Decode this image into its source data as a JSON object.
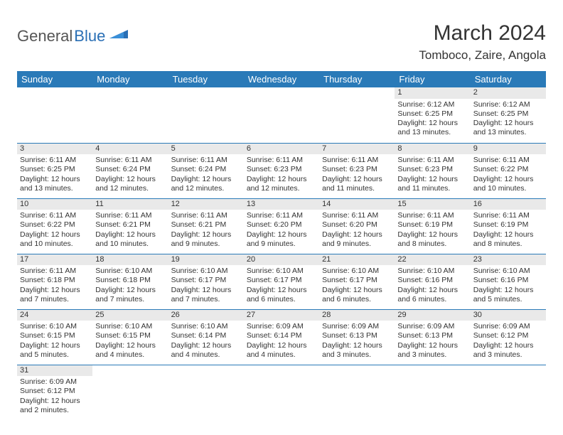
{
  "brand": {
    "part1": "General",
    "part2": "Blue"
  },
  "title": "March 2024",
  "location": "Tomboco, Zaire, Angola",
  "colors": {
    "header_bg": "#2a7ab8",
    "header_text": "#ffffff",
    "daynum_bg": "#e9e9e9",
    "text": "#333333",
    "rule": "#2a7ab8",
    "logo_gray": "#555555",
    "logo_blue": "#2a6fb5"
  },
  "weekdays": [
    "Sunday",
    "Monday",
    "Tuesday",
    "Wednesday",
    "Thursday",
    "Friday",
    "Saturday"
  ],
  "weeks": [
    [
      null,
      null,
      null,
      null,
      null,
      {
        "n": "1",
        "sr": "Sunrise: 6:12 AM",
        "ss": "Sunset: 6:25 PM",
        "d1": "Daylight: 12 hours",
        "d2": "and 13 minutes."
      },
      {
        "n": "2",
        "sr": "Sunrise: 6:12 AM",
        "ss": "Sunset: 6:25 PM",
        "d1": "Daylight: 12 hours",
        "d2": "and 13 minutes."
      }
    ],
    [
      {
        "n": "3",
        "sr": "Sunrise: 6:11 AM",
        "ss": "Sunset: 6:25 PM",
        "d1": "Daylight: 12 hours",
        "d2": "and 13 minutes."
      },
      {
        "n": "4",
        "sr": "Sunrise: 6:11 AM",
        "ss": "Sunset: 6:24 PM",
        "d1": "Daylight: 12 hours",
        "d2": "and 12 minutes."
      },
      {
        "n": "5",
        "sr": "Sunrise: 6:11 AM",
        "ss": "Sunset: 6:24 PM",
        "d1": "Daylight: 12 hours",
        "d2": "and 12 minutes."
      },
      {
        "n": "6",
        "sr": "Sunrise: 6:11 AM",
        "ss": "Sunset: 6:23 PM",
        "d1": "Daylight: 12 hours",
        "d2": "and 12 minutes."
      },
      {
        "n": "7",
        "sr": "Sunrise: 6:11 AM",
        "ss": "Sunset: 6:23 PM",
        "d1": "Daylight: 12 hours",
        "d2": "and 11 minutes."
      },
      {
        "n": "8",
        "sr": "Sunrise: 6:11 AM",
        "ss": "Sunset: 6:23 PM",
        "d1": "Daylight: 12 hours",
        "d2": "and 11 minutes."
      },
      {
        "n": "9",
        "sr": "Sunrise: 6:11 AM",
        "ss": "Sunset: 6:22 PM",
        "d1": "Daylight: 12 hours",
        "d2": "and 10 minutes."
      }
    ],
    [
      {
        "n": "10",
        "sr": "Sunrise: 6:11 AM",
        "ss": "Sunset: 6:22 PM",
        "d1": "Daylight: 12 hours",
        "d2": "and 10 minutes."
      },
      {
        "n": "11",
        "sr": "Sunrise: 6:11 AM",
        "ss": "Sunset: 6:21 PM",
        "d1": "Daylight: 12 hours",
        "d2": "and 10 minutes."
      },
      {
        "n": "12",
        "sr": "Sunrise: 6:11 AM",
        "ss": "Sunset: 6:21 PM",
        "d1": "Daylight: 12 hours",
        "d2": "and 9 minutes."
      },
      {
        "n": "13",
        "sr": "Sunrise: 6:11 AM",
        "ss": "Sunset: 6:20 PM",
        "d1": "Daylight: 12 hours",
        "d2": "and 9 minutes."
      },
      {
        "n": "14",
        "sr": "Sunrise: 6:11 AM",
        "ss": "Sunset: 6:20 PM",
        "d1": "Daylight: 12 hours",
        "d2": "and 9 minutes."
      },
      {
        "n": "15",
        "sr": "Sunrise: 6:11 AM",
        "ss": "Sunset: 6:19 PM",
        "d1": "Daylight: 12 hours",
        "d2": "and 8 minutes."
      },
      {
        "n": "16",
        "sr": "Sunrise: 6:11 AM",
        "ss": "Sunset: 6:19 PM",
        "d1": "Daylight: 12 hours",
        "d2": "and 8 minutes."
      }
    ],
    [
      {
        "n": "17",
        "sr": "Sunrise: 6:11 AM",
        "ss": "Sunset: 6:18 PM",
        "d1": "Daylight: 12 hours",
        "d2": "and 7 minutes."
      },
      {
        "n": "18",
        "sr": "Sunrise: 6:10 AM",
        "ss": "Sunset: 6:18 PM",
        "d1": "Daylight: 12 hours",
        "d2": "and 7 minutes."
      },
      {
        "n": "19",
        "sr": "Sunrise: 6:10 AM",
        "ss": "Sunset: 6:17 PM",
        "d1": "Daylight: 12 hours",
        "d2": "and 7 minutes."
      },
      {
        "n": "20",
        "sr": "Sunrise: 6:10 AM",
        "ss": "Sunset: 6:17 PM",
        "d1": "Daylight: 12 hours",
        "d2": "and 6 minutes."
      },
      {
        "n": "21",
        "sr": "Sunrise: 6:10 AM",
        "ss": "Sunset: 6:17 PM",
        "d1": "Daylight: 12 hours",
        "d2": "and 6 minutes."
      },
      {
        "n": "22",
        "sr": "Sunrise: 6:10 AM",
        "ss": "Sunset: 6:16 PM",
        "d1": "Daylight: 12 hours",
        "d2": "and 6 minutes."
      },
      {
        "n": "23",
        "sr": "Sunrise: 6:10 AM",
        "ss": "Sunset: 6:16 PM",
        "d1": "Daylight: 12 hours",
        "d2": "and 5 minutes."
      }
    ],
    [
      {
        "n": "24",
        "sr": "Sunrise: 6:10 AM",
        "ss": "Sunset: 6:15 PM",
        "d1": "Daylight: 12 hours",
        "d2": "and 5 minutes."
      },
      {
        "n": "25",
        "sr": "Sunrise: 6:10 AM",
        "ss": "Sunset: 6:15 PM",
        "d1": "Daylight: 12 hours",
        "d2": "and 4 minutes."
      },
      {
        "n": "26",
        "sr": "Sunrise: 6:10 AM",
        "ss": "Sunset: 6:14 PM",
        "d1": "Daylight: 12 hours",
        "d2": "and 4 minutes."
      },
      {
        "n": "27",
        "sr": "Sunrise: 6:09 AM",
        "ss": "Sunset: 6:14 PM",
        "d1": "Daylight: 12 hours",
        "d2": "and 4 minutes."
      },
      {
        "n": "28",
        "sr": "Sunrise: 6:09 AM",
        "ss": "Sunset: 6:13 PM",
        "d1": "Daylight: 12 hours",
        "d2": "and 3 minutes."
      },
      {
        "n": "29",
        "sr": "Sunrise: 6:09 AM",
        "ss": "Sunset: 6:13 PM",
        "d1": "Daylight: 12 hours",
        "d2": "and 3 minutes."
      },
      {
        "n": "30",
        "sr": "Sunrise: 6:09 AM",
        "ss": "Sunset: 6:12 PM",
        "d1": "Daylight: 12 hours",
        "d2": "and 3 minutes."
      }
    ],
    [
      {
        "n": "31",
        "sr": "Sunrise: 6:09 AM",
        "ss": "Sunset: 6:12 PM",
        "d1": "Daylight: 12 hours",
        "d2": "and 2 minutes."
      },
      null,
      null,
      null,
      null,
      null,
      null
    ]
  ]
}
